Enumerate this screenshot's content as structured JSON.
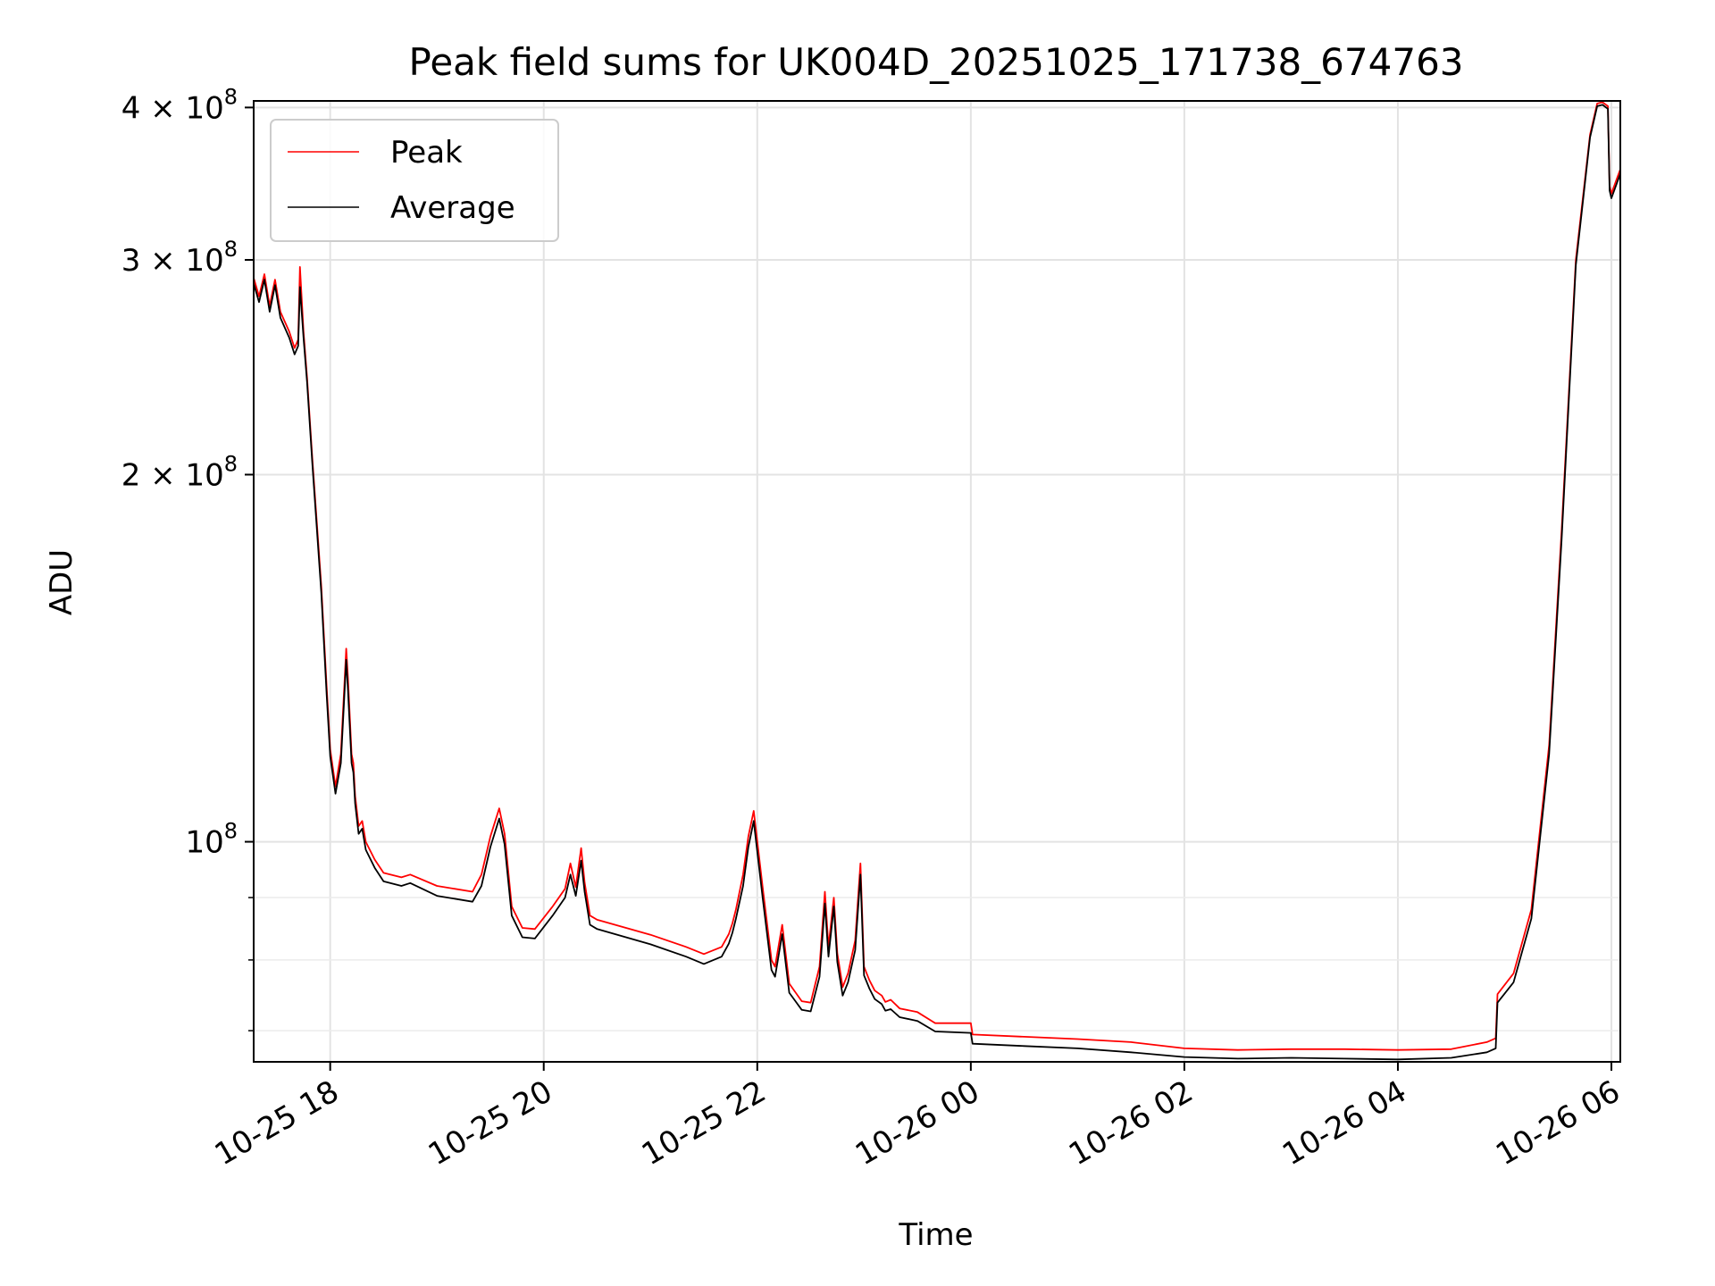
{
  "chart_data": {
    "type": "line",
    "title": "Peak field sums for UK004D_20251025_171738_674763",
    "xlabel": "Time",
    "ylabel": "ADU",
    "y_scale": "log",
    "ylim": [
      66000000,
      405000000
    ],
    "xlim": [
      "2025-10-25 17:17",
      "2025-10-26 06:05"
    ],
    "grid": true,
    "legend_position": "top-left",
    "x_ticks": [
      {
        "value": "2025-10-25 18:00",
        "label": "10-25 18"
      },
      {
        "value": "2025-10-25 20:00",
        "label": "10-25 20"
      },
      {
        "value": "2025-10-25 22:00",
        "label": "10-25 22"
      },
      {
        "value": "2025-10-26 00:00",
        "label": "10-26 00"
      },
      {
        "value": "2025-10-26 02:00",
        "label": "10-26 02"
      },
      {
        "value": "2025-10-26 04:00",
        "label": "10-26 04"
      },
      {
        "value": "2025-10-26 06:00",
        "label": "10-26 06"
      }
    ],
    "y_ticks": [
      {
        "value": 100000000,
        "base": "10",
        "exp": "8"
      },
      {
        "value": 200000000,
        "base": "2 × 10",
        "exp": "8"
      },
      {
        "value": 300000000,
        "base": "3 × 10",
        "exp": "8"
      },
      {
        "value": 400000000,
        "base": "4 × 10",
        "exp": "8"
      }
    ],
    "y_minor_ticks": [
      70000000,
      80000000,
      90000000
    ],
    "series": [
      {
        "name": "Peak",
        "color": "#ff0000",
        "x": [
          "2025-10-25 17:17",
          "2025-10-25 17:20",
          "2025-10-25 17:23",
          "2025-10-25 17:26",
          "2025-10-25 17:29",
          "2025-10-25 17:32",
          "2025-10-25 17:37",
          "2025-10-25 17:40",
          "2025-10-25 17:42",
          "2025-10-25 17:43",
          "2025-10-25 17:45",
          "2025-10-25 17:47",
          "2025-10-25 17:50",
          "2025-10-25 17:55",
          "2025-10-25 17:58",
          "2025-10-25 18:00",
          "2025-10-25 18:03",
          "2025-10-25 18:06",
          "2025-10-25 18:09",
          "2025-10-25 18:10",
          "2025-10-25 18:12",
          "2025-10-25 18:13",
          "2025-10-25 18:14",
          "2025-10-25 18:16",
          "2025-10-25 18:18",
          "2025-10-25 18:20",
          "2025-10-25 18:25",
          "2025-10-25 18:30",
          "2025-10-25 18:40",
          "2025-10-25 18:45",
          "2025-10-25 19:00",
          "2025-10-25 19:20",
          "2025-10-25 19:25",
          "2025-10-25 19:30",
          "2025-10-25 19:35",
          "2025-10-25 19:38",
          "2025-10-25 19:42",
          "2025-10-25 19:48",
          "2025-10-25 19:55",
          "2025-10-25 20:05",
          "2025-10-25 20:12",
          "2025-10-25 20:15",
          "2025-10-25 20:18",
          "2025-10-25 20:21",
          "2025-10-25 20:23",
          "2025-10-25 20:26",
          "2025-10-25 20:30",
          "2025-10-25 21:00",
          "2025-10-25 21:20",
          "2025-10-25 21:30",
          "2025-10-25 21:40",
          "2025-10-25 21:44",
          "2025-10-25 21:46",
          "2025-10-25 21:48",
          "2025-10-25 21:52",
          "2025-10-25 21:55",
          "2025-10-25 21:58",
          "2025-10-25 22:03",
          "2025-10-25 22:08",
          "2025-10-25 22:10",
          "2025-10-25 22:14",
          "2025-10-25 22:18",
          "2025-10-25 22:25",
          "2025-10-25 22:30",
          "2025-10-25 22:35",
          "2025-10-25 22:38",
          "2025-10-25 22:40",
          "2025-10-25 22:43",
          "2025-10-25 22:45",
          "2025-10-25 22:48",
          "2025-10-25 22:51",
          "2025-10-25 22:55",
          "2025-10-25 22:58",
          "2025-10-25 23:00",
          "2025-10-25 23:03",
          "2025-10-25 23:06",
          "2025-10-25 23:10",
          "2025-10-25 23:12",
          "2025-10-25 23:15",
          "2025-10-25 23:20",
          "2025-10-25 23:30",
          "2025-10-25 23:40",
          "2025-10-26 00:00",
          "2025-10-26 00:01",
          "2025-10-26 00:30",
          "2025-10-26 01:00",
          "2025-10-26 01:30",
          "2025-10-26 02:00",
          "2025-10-26 02:30",
          "2025-10-26 03:00",
          "2025-10-26 03:30",
          "2025-10-26 04:00",
          "2025-10-26 04:30",
          "2025-10-26 04:50",
          "2025-10-26 04:55",
          "2025-10-26 04:56",
          "2025-10-26 05:05",
          "2025-10-26 05:15",
          "2025-10-26 05:25",
          "2025-10-26 05:32",
          "2025-10-26 05:40",
          "2025-10-26 05:48",
          "2025-10-26 05:52",
          "2025-10-26 05:55",
          "2025-10-26 05:58",
          "2025-10-26 05:59",
          "2025-10-26 06:00",
          "2025-10-26 06:05"
        ],
        "y": [
          290000000,
          280000000,
          292000000,
          275000000,
          289000000,
          272000000,
          262000000,
          254000000,
          258000000,
          296000000,
          262000000,
          240000000,
          206000000,
          162000000,
          134000000,
          119000000,
          111000000,
          118000000,
          144000000,
          136000000,
          118000000,
          116000000,
          109000000,
          103000000,
          104000000,
          100000000,
          96700000,
          94300000,
          93500000,
          94000000,
          92000000,
          91000000,
          94000000,
          101000000,
          106500000,
          101500000,
          88500000,
          85000000,
          84800000,
          88500000,
          91500000,
          96000000,
          91800000,
          98800000,
          92600000,
          87000000,
          86300000,
          83900000,
          82000000,
          80900000,
          82000000,
          84000000,
          85700000,
          88000000,
          94000000,
          101000000,
          106000000,
          91800000,
          80000000,
          79000000,
          85500000,
          76500000,
          74000000,
          73800000,
          79000000,
          91000000,
          82000000,
          90000000,
          81000000,
          76000000,
          78000000,
          83000000,
          96000000,
          79000000,
          77000000,
          75500000,
          74800000,
          73900000,
          74200000,
          73000000,
          72500000,
          71000000,
          71000000,
          69500000,
          69200000,
          68900000,
          68500000,
          67700000,
          67500000,
          67600000,
          67600000,
          67500000,
          67600000,
          68500000,
          69000000,
          75000000,
          78000000,
          88000000,
          120000000,
          180000000,
          300000000,
          380000000,
          403000000,
          404000000,
          401000000,
          345000000,
          340000000,
          356000000
        ]
      },
      {
        "name": "Average",
        "color": "#000000",
        "x": [
          "2025-10-25 17:17",
          "2025-10-25 17:20",
          "2025-10-25 17:23",
          "2025-10-25 17:26",
          "2025-10-25 17:29",
          "2025-10-25 17:32",
          "2025-10-25 17:37",
          "2025-10-25 17:40",
          "2025-10-25 17:42",
          "2025-10-25 17:43",
          "2025-10-25 17:45",
          "2025-10-25 17:47",
          "2025-10-25 17:50",
          "2025-10-25 17:55",
          "2025-10-25 17:58",
          "2025-10-25 18:00",
          "2025-10-25 18:03",
          "2025-10-25 18:06",
          "2025-10-25 18:09",
          "2025-10-25 18:10",
          "2025-10-25 18:12",
          "2025-10-25 18:13",
          "2025-10-25 18:14",
          "2025-10-25 18:16",
          "2025-10-25 18:18",
          "2025-10-25 18:20",
          "2025-10-25 18:25",
          "2025-10-25 18:30",
          "2025-10-25 18:40",
          "2025-10-25 18:45",
          "2025-10-25 19:00",
          "2025-10-25 19:20",
          "2025-10-25 19:25",
          "2025-10-25 19:30",
          "2025-10-25 19:35",
          "2025-10-25 19:38",
          "2025-10-25 19:42",
          "2025-10-25 19:48",
          "2025-10-25 19:55",
          "2025-10-25 20:05",
          "2025-10-25 20:12",
          "2025-10-25 20:15",
          "2025-10-25 20:18",
          "2025-10-25 20:21",
          "2025-10-25 20:23",
          "2025-10-25 20:26",
          "2025-10-25 20:30",
          "2025-10-25 21:00",
          "2025-10-25 21:20",
          "2025-10-25 21:30",
          "2025-10-25 21:40",
          "2025-10-25 21:44",
          "2025-10-25 21:46",
          "2025-10-25 21:48",
          "2025-10-25 21:52",
          "2025-10-25 21:55",
          "2025-10-25 21:58",
          "2025-10-25 22:03",
          "2025-10-25 22:08",
          "2025-10-25 22:10",
          "2025-10-25 22:14",
          "2025-10-25 22:18",
          "2025-10-25 22:25",
          "2025-10-25 22:30",
          "2025-10-25 22:35",
          "2025-10-25 22:38",
          "2025-10-25 22:40",
          "2025-10-25 22:43",
          "2025-10-25 22:45",
          "2025-10-25 22:48",
          "2025-10-25 22:51",
          "2025-10-25 22:55",
          "2025-10-25 22:58",
          "2025-10-25 23:00",
          "2025-10-25 23:03",
          "2025-10-25 23:06",
          "2025-10-25 23:10",
          "2025-10-25 23:12",
          "2025-10-25 23:15",
          "2025-10-25 23:20",
          "2025-10-25 23:30",
          "2025-10-25 23:40",
          "2025-10-26 00:00",
          "2025-10-26 00:01",
          "2025-10-26 00:30",
          "2025-10-26 01:00",
          "2025-10-26 01:30",
          "2025-10-26 02:00",
          "2025-10-26 02:30",
          "2025-10-26 03:00",
          "2025-10-26 03:30",
          "2025-10-26 04:00",
          "2025-10-26 04:30",
          "2025-10-26 04:50",
          "2025-10-26 04:55",
          "2025-10-26 04:56",
          "2025-10-26 05:05",
          "2025-10-26 05:15",
          "2025-10-26 05:25",
          "2025-10-26 05:32",
          "2025-10-26 05:40",
          "2025-10-26 05:48",
          "2025-10-26 05:52",
          "2025-10-26 05:55",
          "2025-10-26 05:58",
          "2025-10-26 05:59",
          "2025-10-26 06:00",
          "2025-10-26 06:05"
        ],
        "y": [
          287000000,
          277000000,
          289000000,
          272000000,
          286000000,
          269000000,
          259000000,
          251000000,
          255000000,
          285000000,
          259000000,
          238000000,
          204000000,
          160000000,
          132000000,
          117500000,
          109500000,
          116000000,
          141000000,
          133000000,
          116000000,
          114000000,
          107500000,
          101500000,
          102500000,
          98500000,
          95200000,
          92800000,
          92000000,
          92500000,
          90300000,
          89300000,
          92000000,
          99000000,
          104500000,
          99500000,
          87000000,
          83500000,
          83300000,
          87000000,
          90000000,
          94000000,
          90300000,
          96500000,
          91000000,
          85500000,
          84800000,
          82400000,
          80500000,
          79400000,
          80500000,
          82500000,
          84200000,
          86500000,
          92000000,
          99000000,
          104000000,
          90000000,
          78500000,
          77500000,
          84000000,
          75200000,
          72800000,
          72600000,
          77500000,
          89000000,
          80500000,
          88500000,
          79700000,
          74800000,
          76700000,
          81500000,
          94000000,
          77700000,
          75800000,
          74300000,
          73600000,
          72700000,
          72900000,
          71800000,
          71300000,
          69900000,
          69700000,
          68300000,
          68000000,
          67700000,
          67200000,
          66600000,
          66400000,
          66500000,
          66400000,
          66300000,
          66500000,
          67200000,
          67700000,
          73800000,
          76700000,
          86500000,
          118000000,
          177000000,
          297000000,
          378000000,
          401000000,
          402000000,
          399000000,
          342000000,
          337000000,
          353000000
        ]
      }
    ]
  }
}
